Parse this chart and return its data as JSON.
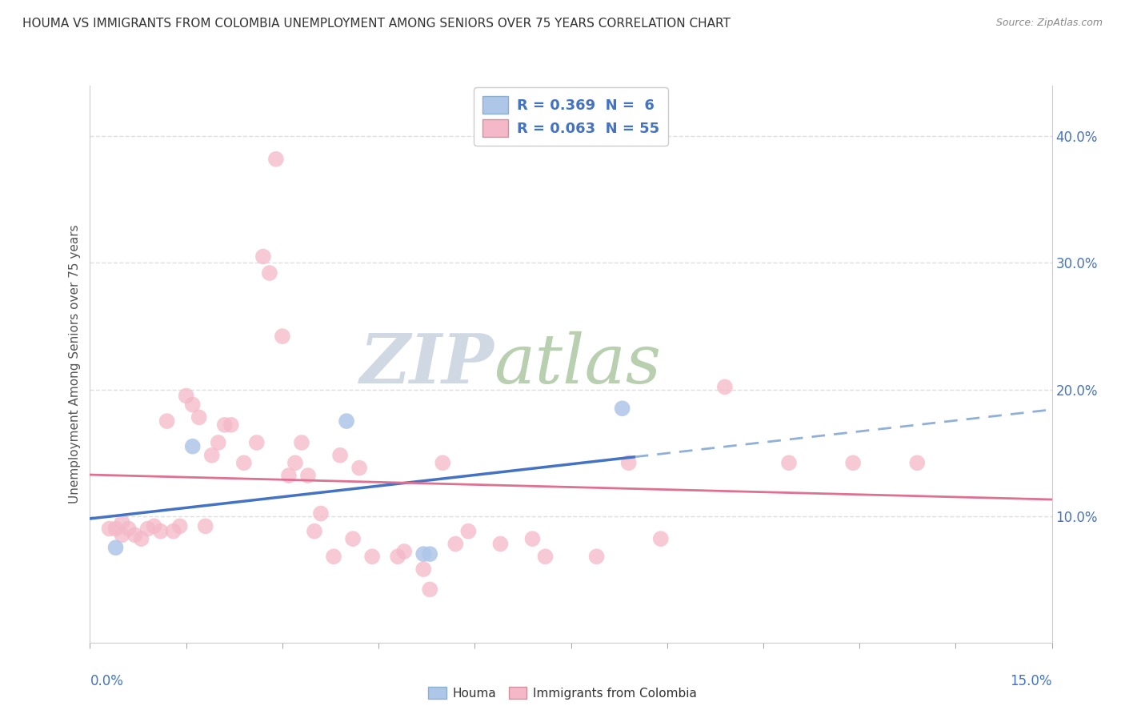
{
  "title": "HOUMA VS IMMIGRANTS FROM COLOMBIA UNEMPLOYMENT AMONG SENIORS OVER 75 YEARS CORRELATION CHART",
  "source": "Source: ZipAtlas.com",
  "ylabel": "Unemployment Among Seniors over 75 years",
  "xlim": [
    0.0,
    0.15
  ],
  "ylim": [
    0.0,
    0.44
  ],
  "houma_R": 0.369,
  "houma_N": 6,
  "colombia_R": 0.063,
  "colombia_N": 55,
  "houma_color": "#aec6e8",
  "colombia_color": "#f4b8c8",
  "houma_line_color": "#4472c4",
  "houma_dash_color": "#90b0d8",
  "colombia_line_color": "#e07090",
  "watermark_color": "#d8e4f0",
  "watermark_color2": "#c8d8c8",
  "houma_points": [
    [
      0.004,
      0.075
    ],
    [
      0.016,
      0.155
    ],
    [
      0.04,
      0.175
    ],
    [
      0.052,
      0.07
    ],
    [
      0.053,
      0.07
    ],
    [
      0.083,
      0.185
    ]
  ],
  "colombia_points": [
    [
      0.003,
      0.09
    ],
    [
      0.004,
      0.09
    ],
    [
      0.005,
      0.095
    ],
    [
      0.005,
      0.085
    ],
    [
      0.006,
      0.09
    ],
    [
      0.007,
      0.085
    ],
    [
      0.008,
      0.082
    ],
    [
      0.009,
      0.09
    ],
    [
      0.01,
      0.092
    ],
    [
      0.011,
      0.088
    ],
    [
      0.012,
      0.175
    ],
    [
      0.013,
      0.088
    ],
    [
      0.014,
      0.092
    ],
    [
      0.015,
      0.195
    ],
    [
      0.016,
      0.188
    ],
    [
      0.017,
      0.178
    ],
    [
      0.018,
      0.092
    ],
    [
      0.019,
      0.148
    ],
    [
      0.02,
      0.158
    ],
    [
      0.021,
      0.172
    ],
    [
      0.022,
      0.172
    ],
    [
      0.024,
      0.142
    ],
    [
      0.026,
      0.158
    ],
    [
      0.027,
      0.305
    ],
    [
      0.028,
      0.292
    ],
    [
      0.029,
      0.382
    ],
    [
      0.03,
      0.242
    ],
    [
      0.031,
      0.132
    ],
    [
      0.032,
      0.142
    ],
    [
      0.033,
      0.158
    ],
    [
      0.034,
      0.132
    ],
    [
      0.035,
      0.088
    ],
    [
      0.036,
      0.102
    ],
    [
      0.038,
      0.068
    ],
    [
      0.039,
      0.148
    ],
    [
      0.041,
      0.082
    ],
    [
      0.042,
      0.138
    ],
    [
      0.044,
      0.068
    ],
    [
      0.048,
      0.068
    ],
    [
      0.049,
      0.072
    ],
    [
      0.052,
      0.058
    ],
    [
      0.053,
      0.042
    ],
    [
      0.055,
      0.142
    ],
    [
      0.057,
      0.078
    ],
    [
      0.059,
      0.088
    ],
    [
      0.064,
      0.078
    ],
    [
      0.069,
      0.082
    ],
    [
      0.071,
      0.068
    ],
    [
      0.079,
      0.068
    ],
    [
      0.084,
      0.142
    ],
    [
      0.089,
      0.082
    ],
    [
      0.099,
      0.202
    ],
    [
      0.109,
      0.142
    ],
    [
      0.119,
      0.142
    ],
    [
      0.129,
      0.142
    ]
  ],
  "houma_line_x_solid_end": 0.085,
  "background_color": "#ffffff",
  "grid_color": "#d8d8d8",
  "title_color": "#333333",
  "axis_label_color": "#4472c4",
  "right_yticks": [
    0.1,
    0.2,
    0.3,
    0.4
  ],
  "right_yticklabels": [
    "10.0%",
    "20.0%",
    "30.0%",
    "40.0%"
  ]
}
